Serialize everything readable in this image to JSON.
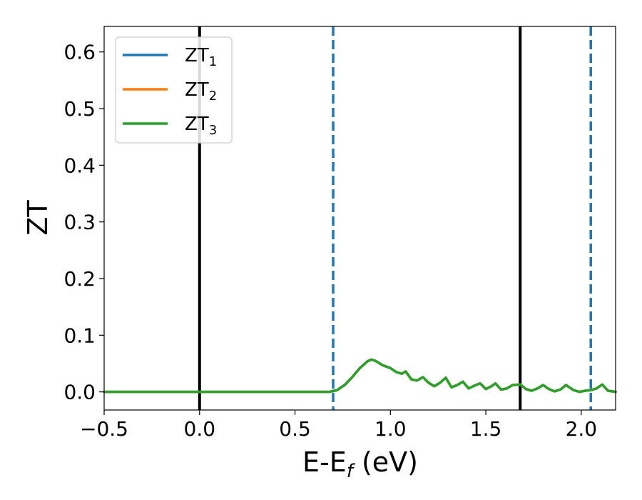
{
  "chart_data": {
    "type": "line",
    "xlabel_main": "E-E",
    "xlabel_sub": "f",
    "xlabel_unit": " (eV)",
    "ylabel": "ZT",
    "xlim": [
      -0.5,
      2.18
    ],
    "ylim": [
      -0.032,
      0.645
    ],
    "xticks": [
      -0.5,
      0.0,
      0.5,
      1.0,
      1.5,
      2.0
    ],
    "xtick_labels": [
      "−0.5",
      "0.0",
      "0.5",
      "1.0",
      "1.5",
      "2.0"
    ],
    "yticks": [
      0.0,
      0.1,
      0.2,
      0.3,
      0.4,
      0.5,
      0.6
    ],
    "ytick_labels": [
      "0.0",
      "0.1",
      "0.2",
      "0.3",
      "0.4",
      "0.5",
      "0.6"
    ],
    "grid": false,
    "legend_position": "top-left",
    "series": [
      {
        "label": "ZT",
        "label_sub": "1",
        "color": "#1f77b4",
        "x": [
          -0.5,
          0.6,
          0.68,
          0.72,
          0.76,
          0.8,
          0.84,
          0.88,
          0.9,
          0.92,
          0.96,
          1.0,
          1.03,
          1.06,
          1.08,
          1.11,
          1.14,
          1.17,
          1.2,
          1.23,
          1.26,
          1.29,
          1.32,
          1.35,
          1.38,
          1.41,
          1.44,
          1.47,
          1.5,
          1.53,
          1.55,
          1.58,
          1.61,
          1.64,
          1.68,
          1.71,
          1.74,
          1.77,
          1.8,
          1.83,
          1.86,
          1.89,
          1.92,
          1.96,
          1.99,
          2.02,
          2.05,
          2.08,
          2.11,
          2.14,
          2.18
        ],
        "y": [
          0.0,
          0.0,
          0.0,
          0.003,
          0.012,
          0.026,
          0.042,
          0.054,
          0.057,
          0.055,
          0.047,
          0.042,
          0.035,
          0.032,
          0.036,
          0.022,
          0.02,
          0.026,
          0.016,
          0.01,
          0.016,
          0.025,
          0.008,
          0.012,
          0.018,
          0.006,
          0.011,
          0.015,
          0.005,
          0.01,
          0.015,
          0.004,
          0.006,
          0.012,
          0.013,
          0.005,
          0.002,
          0.006,
          0.012,
          0.005,
          0.001,
          0.004,
          0.012,
          0.003,
          0.0,
          0.002,
          0.003,
          0.006,
          0.013,
          0.002,
          0.0
        ]
      },
      {
        "label": "ZT",
        "label_sub": "2",
        "color": "#ff7f0e",
        "x": [
          -0.5,
          0.6,
          0.68,
          0.72,
          0.76,
          0.8,
          0.84,
          0.88,
          0.9,
          0.92,
          0.96,
          1.0,
          1.03,
          1.06,
          1.08,
          1.11,
          1.14,
          1.17,
          1.2,
          1.23,
          1.26,
          1.29,
          1.32,
          1.35,
          1.38,
          1.41,
          1.44,
          1.47,
          1.5,
          1.53,
          1.55,
          1.58,
          1.61,
          1.64,
          1.68,
          1.71,
          1.74,
          1.77,
          1.8,
          1.83,
          1.86,
          1.89,
          1.92,
          1.96,
          1.99,
          2.02,
          2.05,
          2.08,
          2.11,
          2.14,
          2.18
        ],
        "y": [
          0.0,
          0.0,
          0.0,
          0.003,
          0.012,
          0.026,
          0.042,
          0.054,
          0.057,
          0.055,
          0.047,
          0.042,
          0.035,
          0.032,
          0.036,
          0.022,
          0.02,
          0.026,
          0.016,
          0.01,
          0.016,
          0.025,
          0.008,
          0.012,
          0.018,
          0.006,
          0.011,
          0.015,
          0.005,
          0.01,
          0.015,
          0.004,
          0.006,
          0.012,
          0.013,
          0.005,
          0.002,
          0.006,
          0.012,
          0.005,
          0.001,
          0.004,
          0.012,
          0.003,
          0.0,
          0.002,
          0.003,
          0.006,
          0.013,
          0.002,
          0.0
        ]
      },
      {
        "label": "ZT",
        "label_sub": "3",
        "color": "#2ca02c",
        "x": [
          -0.5,
          0.6,
          0.68,
          0.72,
          0.76,
          0.8,
          0.84,
          0.88,
          0.9,
          0.92,
          0.96,
          1.0,
          1.03,
          1.06,
          1.08,
          1.11,
          1.14,
          1.17,
          1.2,
          1.23,
          1.26,
          1.29,
          1.32,
          1.35,
          1.38,
          1.41,
          1.44,
          1.47,
          1.5,
          1.53,
          1.55,
          1.58,
          1.61,
          1.64,
          1.68,
          1.71,
          1.74,
          1.77,
          1.8,
          1.83,
          1.86,
          1.89,
          1.92,
          1.96,
          1.99,
          2.02,
          2.05,
          2.08,
          2.11,
          2.14,
          2.18
        ],
        "y": [
          0.0,
          0.0,
          0.0,
          0.003,
          0.012,
          0.026,
          0.042,
          0.054,
          0.057,
          0.055,
          0.047,
          0.042,
          0.035,
          0.032,
          0.036,
          0.022,
          0.02,
          0.026,
          0.016,
          0.01,
          0.016,
          0.025,
          0.008,
          0.012,
          0.018,
          0.006,
          0.011,
          0.015,
          0.005,
          0.01,
          0.015,
          0.004,
          0.006,
          0.012,
          0.013,
          0.005,
          0.002,
          0.006,
          0.012,
          0.005,
          0.001,
          0.004,
          0.012,
          0.003,
          0.0,
          0.002,
          0.003,
          0.006,
          0.013,
          0.002,
          0.0
        ]
      }
    ],
    "vlines": [
      {
        "x": 0.0,
        "style": "solid",
        "color": "#000000"
      },
      {
        "x": 1.68,
        "style": "solid",
        "color": "#000000"
      },
      {
        "x": 0.7,
        "style": "dashed",
        "color": "#1f77b4"
      },
      {
        "x": 2.05,
        "style": "dashed",
        "color": "#1f77b4"
      }
    ]
  }
}
